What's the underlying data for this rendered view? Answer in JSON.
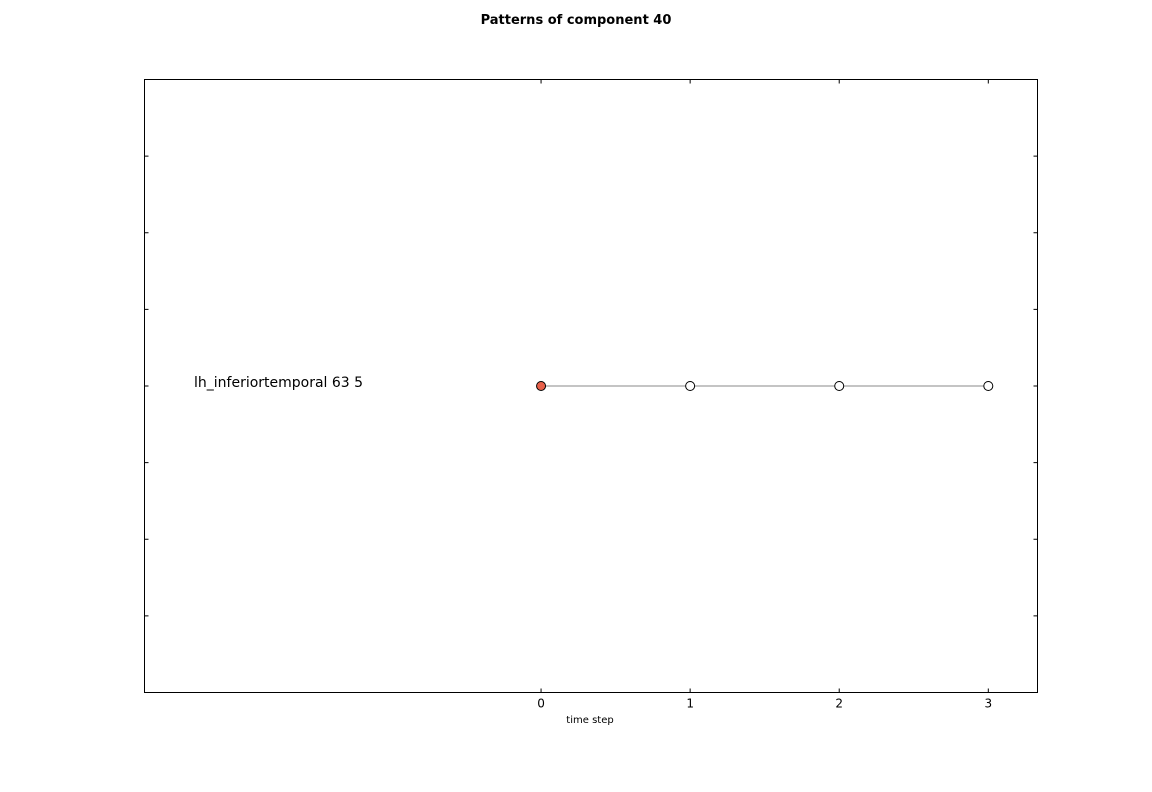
{
  "chart_data": {
    "type": "scatter",
    "title": "Patterns of component 40",
    "xlabel": "time step",
    "ylabel": "",
    "x_ticks": [
      0,
      1,
      2,
      3
    ],
    "xlim": [
      -2.66,
      3.33
    ],
    "ylim": [
      -4,
      4
    ],
    "grid": false,
    "rows": [
      {
        "label": "lh_inferiortemporal 63 5",
        "y": 0,
        "points": [
          {
            "x": 0,
            "color": "#e8604a"
          },
          {
            "x": 1,
            "color": "#ffffff"
          },
          {
            "x": 2,
            "color": "#ffffff"
          },
          {
            "x": 3,
            "color": "#ffffff"
          }
        ]
      }
    ],
    "line_color": "#888888"
  }
}
